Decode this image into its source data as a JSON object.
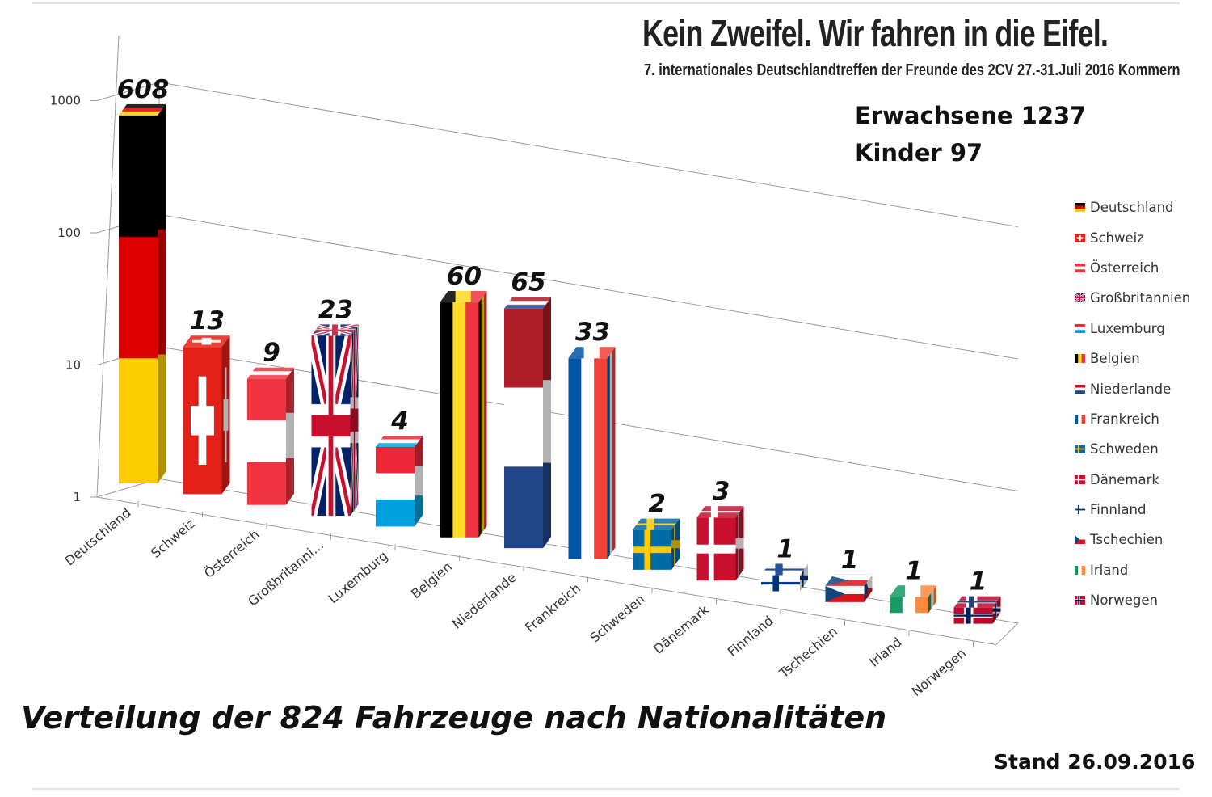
{
  "banner": {
    "title": "Kein Zweifel. Wir fahren in die Eifel.",
    "subtitle": "7. internationales Deutschlandtreffen der Freunde des 2CV  27.-31.Juli 2016 Kommern"
  },
  "stats": {
    "adults": "Erwachsene 1237",
    "children": "Kinder 97"
  },
  "footer": {
    "title": "Verteilung der 824 Fahrzeuge nach Nationalitäten",
    "stand": "Stand 26.09.2016"
  },
  "chart_data": {
    "type": "bar",
    "title": "Verteilung der 824 Fahrzeuge nach Nationalitäten",
    "xlabel": "",
    "ylabel": "",
    "yscale": "log",
    "ylim": [
      1,
      1000
    ],
    "yticks": [
      "1",
      "10",
      "100",
      "1000"
    ],
    "categories": [
      "Deutschland",
      "Schweiz",
      "Österreich",
      "Großbritannien",
      "Luxemburg",
      "Belgien",
      "Niederlande",
      "Frankreich",
      "Schweden",
      "Dänemark",
      "Finnland",
      "Tschechien",
      "Irland",
      "Norwegen"
    ],
    "tick_labels": [
      "Deutschland",
      "Schweiz",
      "Österreich",
      "Großbritanni...",
      "Luxemburg",
      "Belgien",
      "Niederlande",
      "Frankreich",
      "Schweden",
      "Dänemark",
      "Finnland",
      "Tschechien",
      "Irland",
      "Norwegen"
    ],
    "values": [
      608,
      13,
      9,
      23,
      4,
      60,
      65,
      33,
      2,
      3,
      1,
      1,
      1,
      1
    ],
    "value_labels": [
      "608",
      "13",
      "9",
      "23",
      "4",
      "60",
      "65",
      "33",
      "2",
      "3",
      "1",
      "1",
      "1",
      "1"
    ],
    "legend": [
      "Deutschland",
      "Schweiz",
      "Österreich",
      "Großbritannien",
      "Luxemburg",
      "Belgien",
      "Niederlande",
      "Frankreich",
      "Schweden",
      "Dänemark",
      "Finnland",
      "Tschechien",
      "Irland",
      "Norwegen"
    ],
    "legend_position": "right",
    "grid": true,
    "style": "3d-flag-columns",
    "colors": {
      "de": [
        "#000000",
        "#dd0000",
        "#ffce00"
      ],
      "ch": [
        "#e32119",
        "#ffffff"
      ],
      "at": [
        "#ef3340",
        "#ffffff"
      ],
      "gb": [
        "#012169",
        "#ffffff",
        "#c8102e"
      ],
      "lu": [
        "#ed2939",
        "#ffffff",
        "#00a1de"
      ],
      "be": [
        "#000000",
        "#fdda24",
        "#ef3340"
      ],
      "nl": [
        "#ae1c28",
        "#ffffff",
        "#21468b"
      ],
      "fr": [
        "#0055a4",
        "#ffffff",
        "#ef4135"
      ],
      "se": [
        "#006aa7",
        "#fecc00"
      ],
      "dk": [
        "#c8102e",
        "#ffffff"
      ],
      "fi": [
        "#ffffff",
        "#003580"
      ],
      "cz": [
        "#ffffff",
        "#d7141a",
        "#11457e"
      ],
      "ie": [
        "#169b62",
        "#ffffff",
        "#ff883e"
      ],
      "no": [
        "#ba0c2f",
        "#ffffff",
        "#00205b"
      ]
    }
  }
}
